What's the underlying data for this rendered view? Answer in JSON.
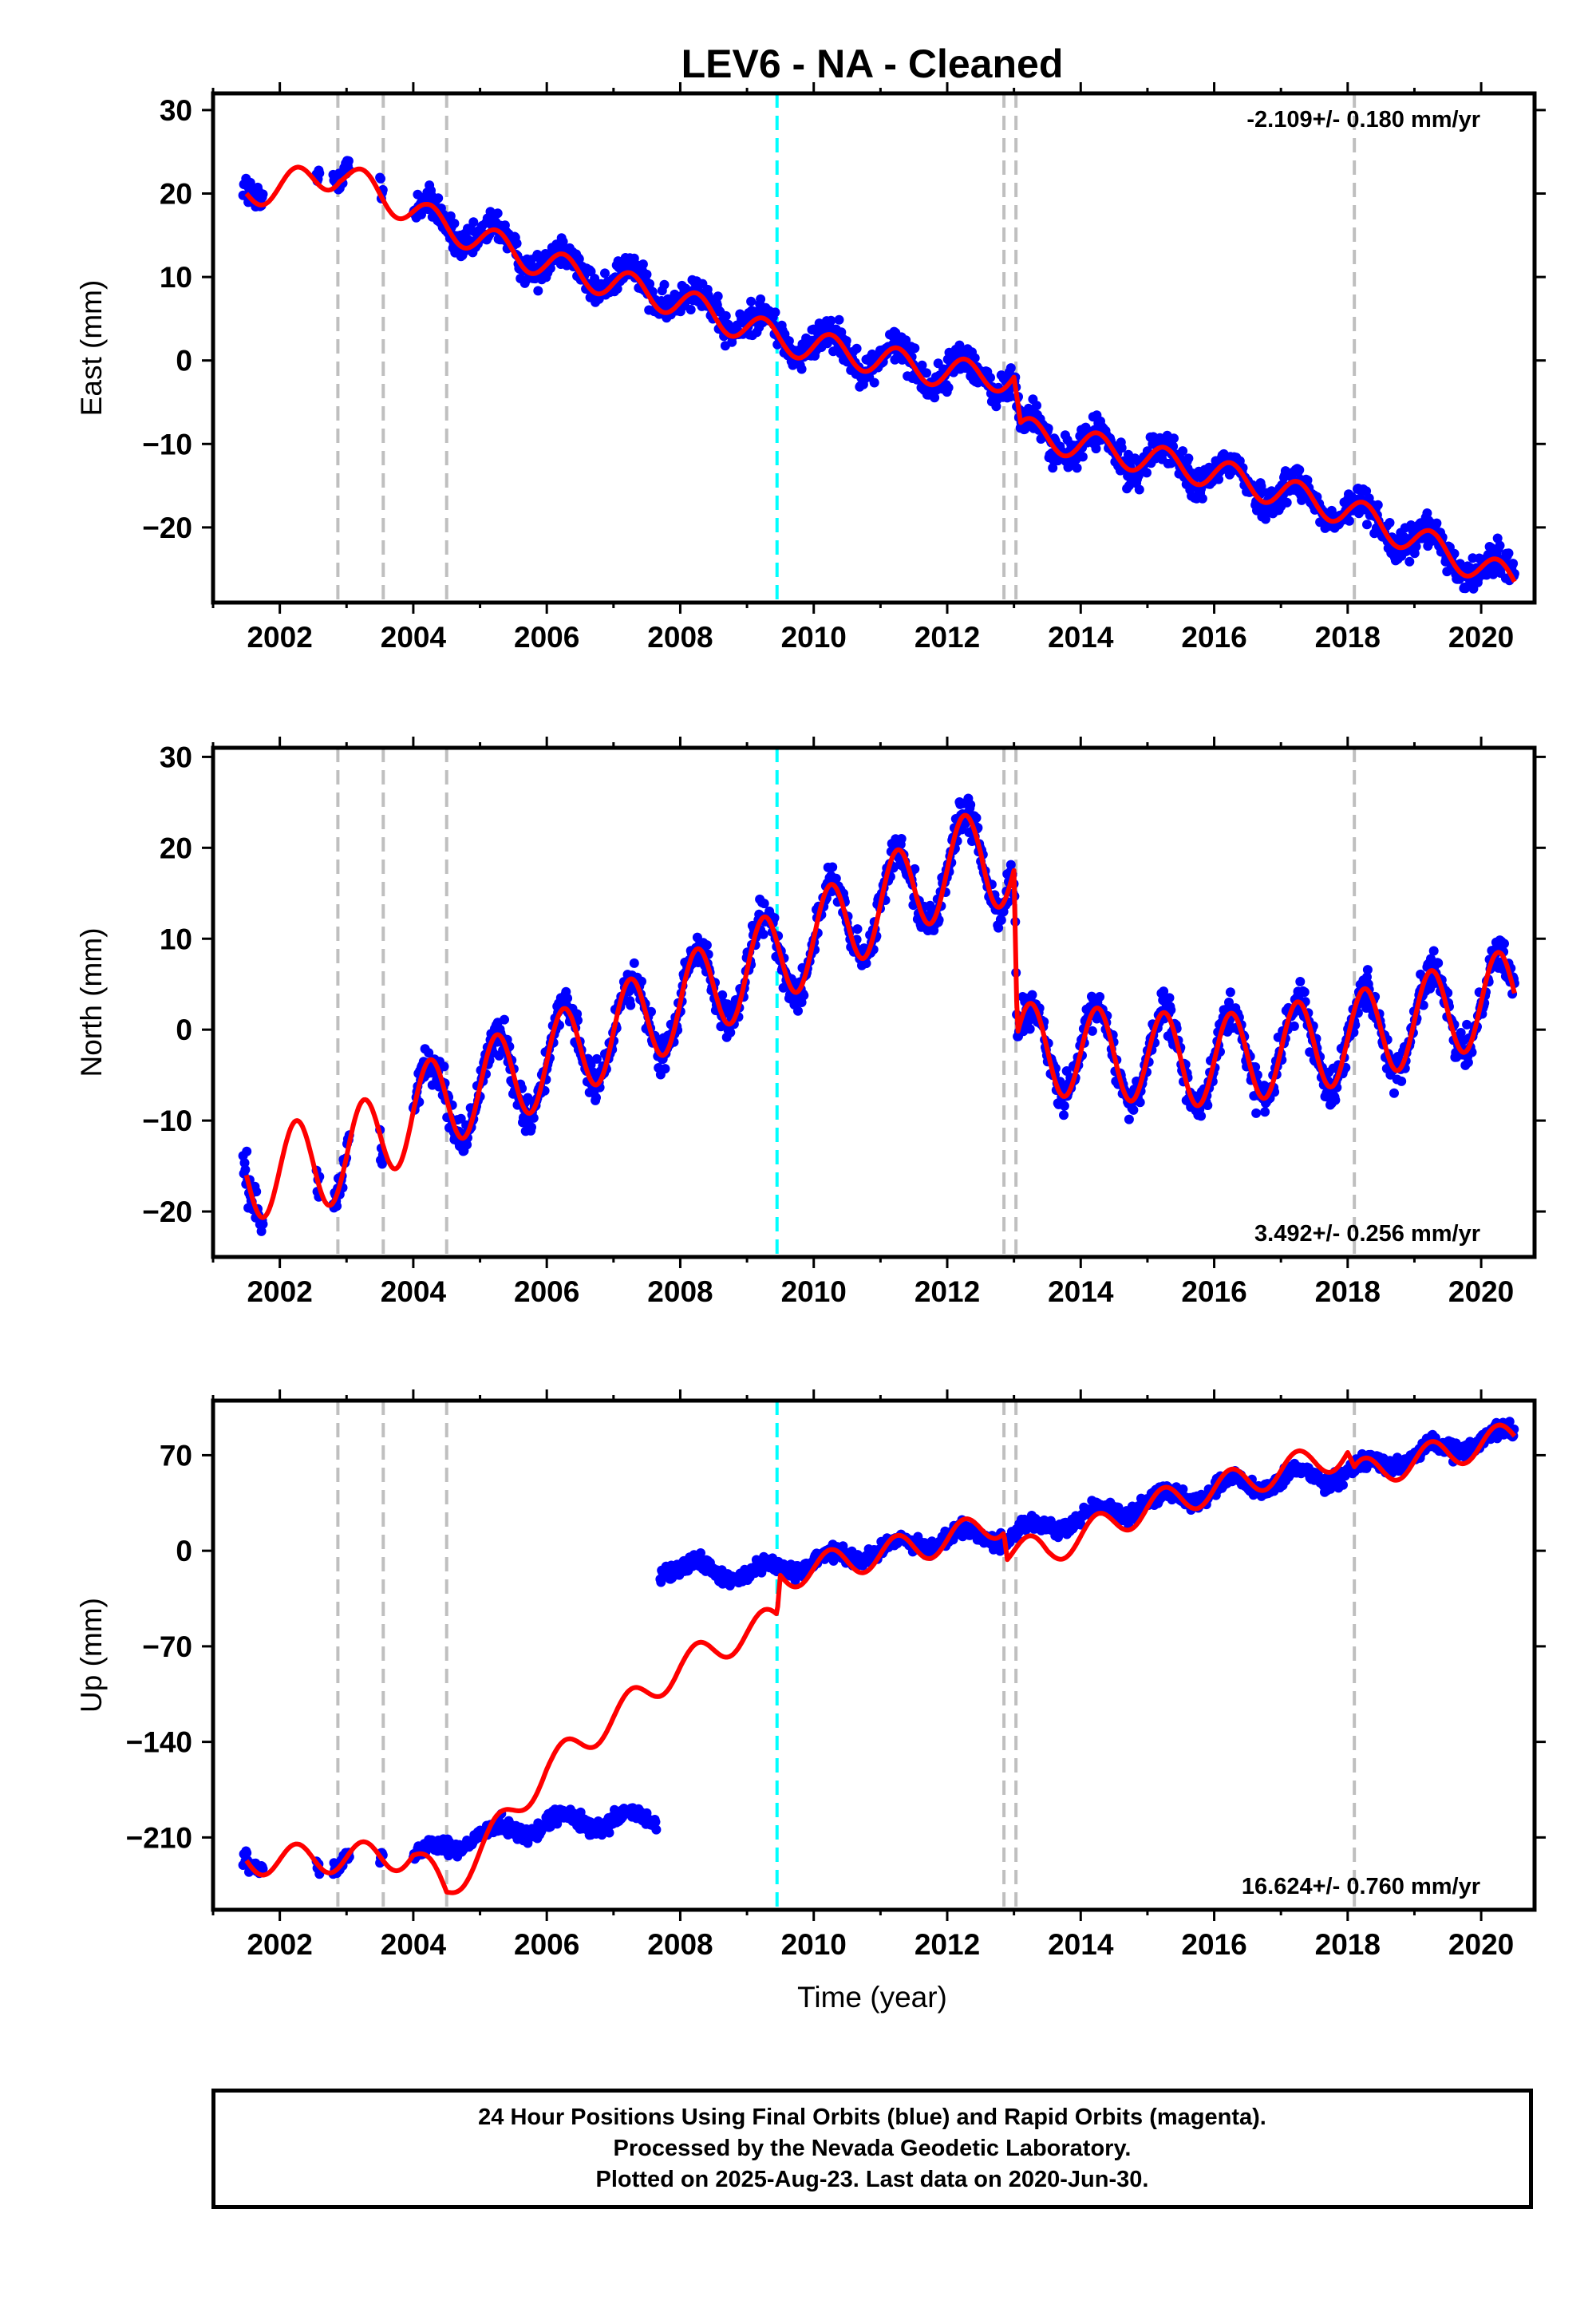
{
  "title": "LEV6  - NA - Cleaned",
  "xlabel": "Time (year)",
  "caption": [
    "24 Hour Positions Using Final Orbits (blue) and Rapid Orbits (magenta).",
    "Processed by the Nevada Geodetic Laboratory.",
    "Plotted on 2025-Aug-23. Last data on 2020-Jun-30."
  ],
  "colors": {
    "data": "#0000ff",
    "model": "#ff0000",
    "event_line": "#bfbfbf",
    "highlight_line": "#00ffff"
  },
  "chart_data": [
    {
      "type": "scatter",
      "ylabel": "East (mm)",
      "rate_text": "-2.109+/- 0.180 mm/yr",
      "rate_position": "top-right",
      "xlim": [
        2001.0,
        2020.8
      ],
      "ylim": [
        -29,
        32
      ],
      "x_ticks": [
        2002,
        2004,
        2006,
        2008,
        2010,
        2012,
        2014,
        2016,
        2018,
        2020
      ],
      "y_ticks": [
        -20,
        -10,
        0,
        10,
        20,
        30
      ],
      "y_tick_labels": [
        "−20",
        "−10",
        "0",
        "10",
        "20",
        "30"
      ],
      "event_lines": [
        2002.87,
        2003.55,
        2004.5,
        2012.85,
        2013.03,
        2018.1
      ],
      "highlight_lines": [
        2009.45
      ],
      "series": [
        {
          "name": "Final Orbits",
          "style": "points",
          "coverage": [
            [
              2001.45,
              2001.75
            ],
            [
              2002.55,
              2002.6
            ],
            [
              2002.8,
              2003.05
            ],
            [
              2003.5,
              2003.55
            ],
            [
              2004.0,
              2020.5
            ]
          ],
          "trend": {
            "x": [
              2001.5,
              2002.9,
              2004.2,
              2006.0,
              2008.0,
              2009.5,
              2012.0,
              2013.0,
              2013.1,
              2016.0,
              2018.0,
              2020.5
            ],
            "y": [
              20.5,
              23.5,
              17.0,
              12.0,
              7.5,
              3.0,
              -1.5,
              -2.0,
              -8.5,
              -13.5,
              -18.0,
              -26.5
            ]
          },
          "annual_amp": 2.0,
          "scatter": 2.0
        },
        {
          "name": "Model",
          "style": "line",
          "trend": {
            "x": [
              2001.5,
              2002.9,
              2004.2,
              2006.0,
              2008.0,
              2009.5,
              2012.0,
              2013.0,
              2013.1,
              2016.0,
              2018.0,
              2020.5
            ],
            "y": [
              20.0,
              22.5,
              17.0,
              11.5,
              7.0,
              2.5,
              -1.5,
              -2.0,
              -8.5,
              -13.5,
              -18.0,
              -26.5
            ]
          },
          "annual_amp": 1.8
        }
      ]
    },
    {
      "type": "scatter",
      "ylabel": "North (mm)",
      "rate_text": "3.492+/- 0.256 mm/yr",
      "rate_position": "bottom-right",
      "xlim": [
        2001.0,
        2020.8
      ],
      "ylim": [
        -25,
        31
      ],
      "x_ticks": [
        2002,
        2004,
        2006,
        2008,
        2010,
        2012,
        2014,
        2016,
        2018,
        2020
      ],
      "y_ticks": [
        -20,
        -10,
        0,
        10,
        20,
        30
      ],
      "y_tick_labels": [
        "−20",
        "−10",
        "0",
        "10",
        "20",
        "30"
      ],
      "event_lines": [
        2002.87,
        2003.55,
        2004.5,
        2012.85,
        2013.03,
        2018.1
      ],
      "highlight_lines": [
        2009.45
      ],
      "series": [
        {
          "name": "Final Orbits",
          "style": "points",
          "coverage": [
            [
              2001.45,
              2001.75
            ],
            [
              2002.55,
              2002.6
            ],
            [
              2002.8,
              2003.05
            ],
            [
              2003.5,
              2003.55
            ],
            [
              2004.0,
              2020.5
            ]
          ],
          "trend": {
            "x": [
              2001.5,
              2003.0,
              2004.0,
              2006.0,
              2008.0,
              2010.0,
              2012.5,
              2013.0,
              2013.05,
              2016.0,
              2018.0,
              2020.5
            ],
            "y": [
              -16.0,
              -14.0,
              -9.0,
              -3.5,
              3.0,
              10.0,
              19.5,
              17.5,
              -2.0,
              -3.5,
              -1.0,
              4.0
            ]
          },
          "annual_amp": 5.0,
          "scatter": 2.0
        },
        {
          "name": "Model",
          "style": "line",
          "trend": {
            "x": [
              2001.5,
              2003.0,
              2004.0,
              2006.0,
              2008.0,
              2010.0,
              2012.5,
              2013.0,
              2013.05,
              2016.0,
              2018.0,
              2020.5
            ],
            "y": [
              -16.0,
              -14.0,
              -9.0,
              -3.5,
              3.0,
              10.0,
              19.5,
              17.5,
              -2.0,
              -3.5,
              -1.0,
              4.0
            ]
          },
          "annual_amp": 5.0
        }
      ]
    },
    {
      "type": "scatter",
      "ylabel": "Up (mm)",
      "rate_text": "16.624+/- 0.760 mm/yr",
      "rate_position": "bottom-right",
      "xlim": [
        2001.0,
        2020.8
      ],
      "ylim": [
        -263,
        110
      ],
      "x_ticks": [
        2002,
        2004,
        2006,
        2008,
        2010,
        2012,
        2014,
        2016,
        2018,
        2020
      ],
      "y_ticks": [
        -210,
        -140,
        -70,
        0,
        70
      ],
      "y_tick_labels": [
        "−210",
        "−140",
        "−70",
        "0",
        "70"
      ],
      "event_lines": [
        2002.87,
        2003.55,
        2004.5,
        2012.85,
        2013.03,
        2018.1
      ],
      "highlight_lines": [
        2009.45
      ],
      "series": [
        {
          "name": "Final Orbits (segment 1)",
          "style": "points",
          "coverage": [
            [
              2001.45,
              2001.75
            ],
            [
              2002.55,
              2002.6
            ],
            [
              2002.8,
              2003.05
            ],
            [
              2003.5,
              2003.55
            ],
            [
              2004.0,
              2007.65
            ]
          ],
          "trend": {
            "x": [
              2001.5,
              2004.0,
              2005.0,
              2006.0,
              2007.65
            ],
            "y": [
              -227.0,
              -224.0,
              -208.0,
              -200.0,
              -197.0
            ]
          },
          "annual_amp": 6.0,
          "scatter": 6.0
        },
        {
          "name": "Final Orbits (segment 2)",
          "style": "points",
          "coverage": [
            [
              2007.7,
              2020.5
            ]
          ],
          "trend": {
            "x": [
              2007.7,
              2009.0,
              2012.0,
              2013.0,
              2014.0,
              2016.0,
              2018.0,
              2020.5
            ],
            "y": [
              -12.0,
              -17.0,
              10.0,
              12.0,
              24.0,
              45.0,
              58.0,
              87.0
            ]
          },
          "annual_amp": 6.0,
          "scatter": 6.0
        },
        {
          "name": "Model",
          "style": "line",
          "trend": {
            "x": [
              2001.5,
              2004.0,
              2004.5,
              2006.0,
              2007.0,
              2008.0,
              2009.0,
              2009.45,
              2009.5,
              2012.0,
              2012.85,
              2012.9,
              2013.5,
              2015.0,
              2018.0,
              2018.1,
              2020.5
            ],
            "y": [
              -227.0,
              -223.0,
              -250.0,
              -160.0,
              -122.0,
              -85.0,
              -60.0,
              -50.0,
              -18.0,
              8.0,
              22.0,
              0.0,
              0.0,
              32.0,
              72.0,
              55.0,
              84.0
            ]
          },
          "annual_amp": 11.0
        }
      ]
    }
  ]
}
